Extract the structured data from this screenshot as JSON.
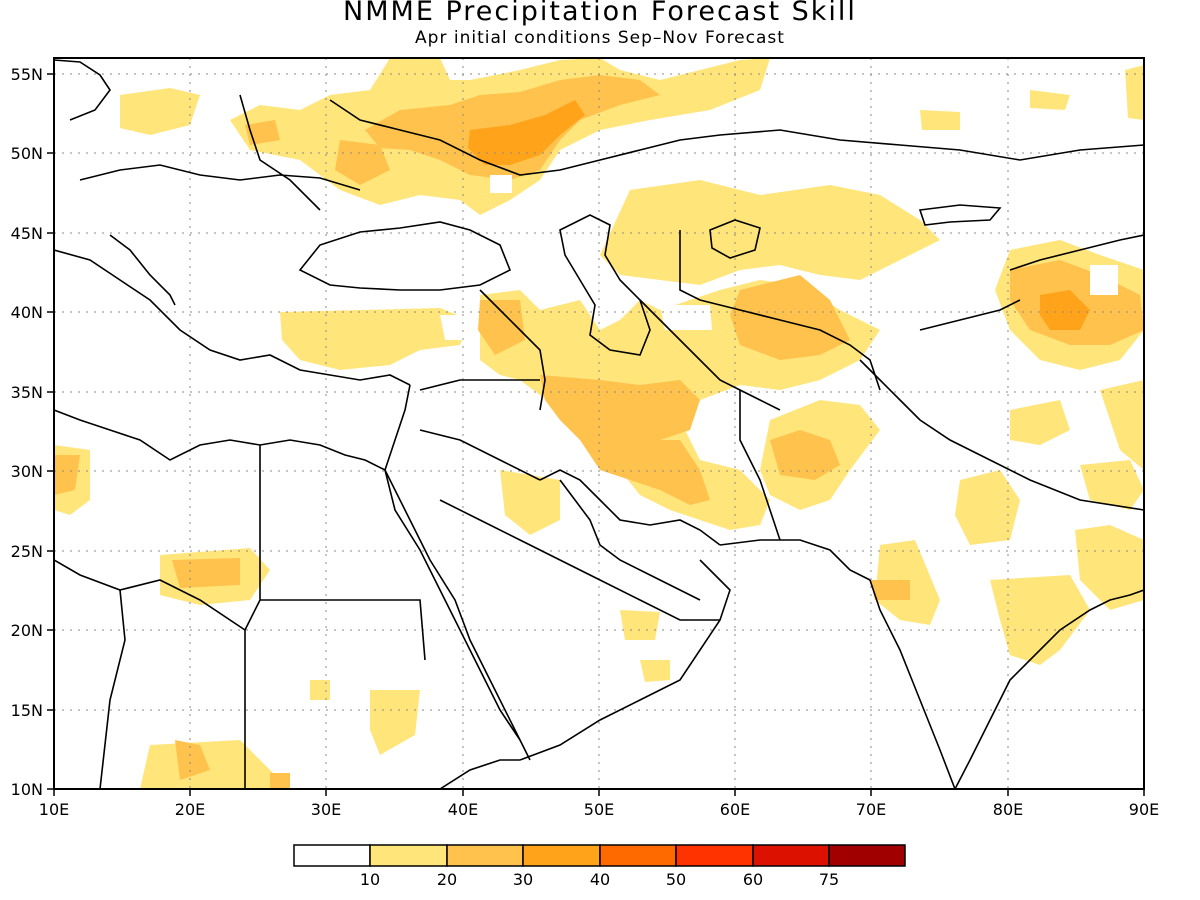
{
  "title": "NMME Precipitation Forecast Skill",
  "subtitle": "Apr initial conditions   Sep–Nov Forecast",
  "map": {
    "lon_range": [
      10,
      90
    ],
    "lat_range": [
      10,
      56
    ],
    "x_ticks": [
      "10E",
      "20E",
      "30E",
      "40E",
      "50E",
      "60E",
      "70E",
      "80E",
      "90E"
    ],
    "y_ticks": [
      "55N",
      "50N",
      "45N",
      "40N",
      "35N",
      "30N",
      "25N",
      "20N",
      "15N",
      "10N"
    ],
    "grid": "dotted"
  },
  "colorbar": {
    "labels": [
      "10",
      "20",
      "30",
      "40",
      "50",
      "60",
      "75"
    ],
    "colors": [
      "#ffffff",
      "#ffe57a",
      "#ffc24d",
      "#ffa31a",
      "#ff6a00",
      "#ff3300",
      "#dd1100",
      "#a00000"
    ]
  },
  "chart_data": {
    "type": "heatmap",
    "title": "NMME Precipitation Forecast Skill",
    "subtitle": "Apr initial conditions   Sep–Nov Forecast",
    "xlim": [
      10,
      90
    ],
    "ylim": [
      10,
      56
    ],
    "levels": [
      10,
      20,
      30,
      40,
      50,
      60,
      75
    ],
    "regions": [
      {
        "lon": 52,
        "lat": 50,
        "level": 30
      },
      {
        "lon": 45,
        "lat": 49,
        "level": 20
      },
      {
        "lon": 65,
        "lat": 40,
        "level": 20
      },
      {
        "lon": 84,
        "lat": 40,
        "level": 30
      },
      {
        "lon": 50,
        "lat": 33,
        "level": 20
      },
      {
        "lon": 64,
        "lat": 30,
        "level": 20
      },
      {
        "lon": 20,
        "lat": 24,
        "level": 20
      },
      {
        "lon": 10,
        "lat": 30,
        "level": 20
      }
    ]
  }
}
